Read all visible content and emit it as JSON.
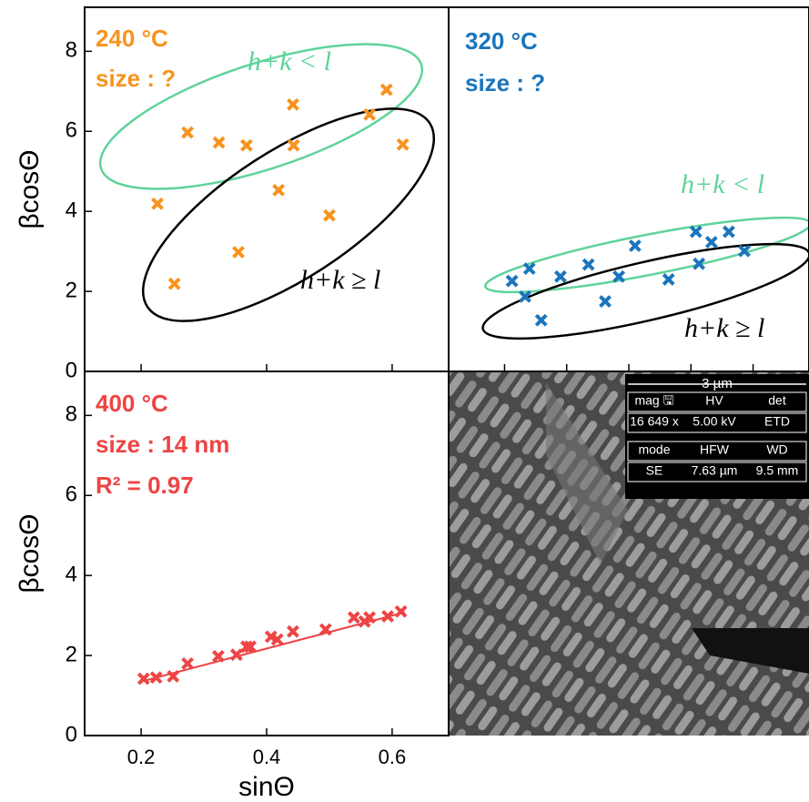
{
  "chart_data": [
    {
      "type": "scatter",
      "ylabel": "βcosΘ",
      "annotations": [
        "240 °C",
        "size : ?"
      ],
      "region_labels": [
        "h+k < l",
        "h+k ≥ l"
      ],
      "xlim": [
        0.11,
        0.69
      ],
      "ylim": [
        0,
        9.1
      ],
      "xticks": [
        0.2,
        0.4,
        0.6
      ],
      "yticks": [
        0,
        2,
        4,
        6,
        8
      ],
      "series": [
        {
          "color": "#f7931e",
          "x": [
            0.226,
            0.274,
            0.324,
            0.368,
            0.419,
            0.442,
            0.443,
            0.355,
            0.253,
            0.5,
            0.564,
            0.591,
            0.617
          ],
          "values": [
            4.19,
            5.97,
            5.72,
            5.65,
            4.53,
            6.67,
            5.65,
            2.98,
            2.19,
            3.9,
            6.42,
            7.04,
            5.67
          ]
        }
      ]
    },
    {
      "type": "scatter",
      "annotations": [
        "320 °C",
        "size : ?"
      ],
      "region_labels": [
        "h+k < l",
        "h+k ≥ l"
      ],
      "xlim": [
        0.11,
        0.69
      ],
      "ylim": [
        0,
        9.1
      ],
      "xticks": [
        0.2,
        0.3,
        0.4,
        0.5,
        0.6
      ],
      "series": [
        {
          "color": "#1b75bc",
          "x": [
            0.212,
            0.233,
            0.259,
            0.24,
            0.29,
            0.335,
            0.362,
            0.384,
            0.41,
            0.464,
            0.508,
            0.513,
            0.533,
            0.561,
            0.586
          ],
          "values": [
            2.26,
            1.87,
            1.28,
            2.57,
            2.37,
            2.67,
            1.75,
            2.37,
            3.14,
            2.3,
            3.49,
            2.69,
            3.23,
            3.49,
            3.01
          ]
        }
      ]
    },
    {
      "type": "scatter",
      "ylabel": "βcosΘ",
      "xlabel": "sinΘ",
      "annotations": [
        "400 °C",
        "size : 14 nm",
        "R² = 0.97"
      ],
      "xlim": [
        0.11,
        0.69
      ],
      "ylim": [
        0,
        9.1
      ],
      "xticks": [
        0.2,
        0.4,
        0.6
      ],
      "yticks": [
        0,
        2,
        4,
        6,
        8
      ],
      "series": [
        {
          "color": "#ee4444",
          "x": [
            0.204,
            0.224,
            0.251,
            0.274,
            0.323,
            0.352,
            0.368,
            0.374,
            0.407,
            0.417,
            0.442,
            0.494,
            0.539,
            0.556,
            0.564,
            0.593,
            0.614
          ],
          "values": [
            1.42,
            1.45,
            1.48,
            1.8,
            1.98,
            2.02,
            2.22,
            2.22,
            2.47,
            2.4,
            2.6,
            2.65,
            2.95,
            2.85,
            2.95,
            2.98,
            3.1
          ]
        }
      ],
      "fit": {
        "x": [
          0.2,
          0.62
        ],
        "values": [
          1.35,
          3.08
        ],
        "color": "#ee4444"
      }
    }
  ],
  "sem_image": {
    "scale": "3 µm",
    "info": [
      [
        "mag 🖫",
        "HV",
        "det"
      ],
      [
        "16 649 x",
        "5.00 kV",
        "ETD"
      ],
      [
        "mode",
        "HFW",
        "WD"
      ],
      [
        "SE",
        "7.63 µm",
        "9.5 mm"
      ]
    ]
  }
}
